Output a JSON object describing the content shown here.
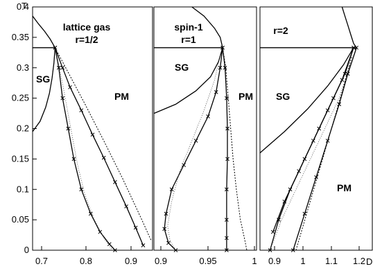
{
  "chart_data": {
    "type": "line",
    "ylabel": "T",
    "xlabel": "D",
    "ylim": [
      0,
      0.4
    ],
    "yticks": [
      "0",
      "0.05",
      "0.1",
      "0.15",
      "0.2",
      "0.25",
      "0.3",
      "0.35",
      "0.4"
    ],
    "grid": false,
    "panels": [
      {
        "title_lines": [
          "lattice gas",
          "r=1/2"
        ],
        "region_labels": [
          "SG",
          "PM"
        ],
        "xlim": [
          0.68,
          1.0
        ],
        "xticks": [
          "0.7",
          "0.8",
          "0.9"
        ],
        "series": [
          {
            "style": "solid",
            "x": [
              0.68,
              0.696,
              0.712,
              0.727,
              0.74
            ],
            "y": [
              0.385,
              0.372,
              0.36,
              0.347,
              0.333
            ]
          },
          {
            "style": "solid",
            "x": [
              0.68,
              0.7,
              0.715,
              0.725,
              0.732,
              0.737,
              0.74
            ],
            "y": [
              0.195,
              0.212,
              0.235,
              0.258,
              0.283,
              0.308,
              0.333
            ]
          },
          {
            "style": "solid",
            "x": [
              0.68,
              0.74
            ],
            "y": [
              0.333,
              0.333
            ]
          },
          {
            "style": "solid-x",
            "x": [
              0.74,
              0.76,
              0.78,
              0.81,
              0.84,
              0.87,
              0.9,
              0.93,
              0.955,
              0.975
            ],
            "y": [
              0.333,
              0.3,
              0.268,
              0.23,
              0.19,
              0.152,
              0.112,
              0.072,
              0.037,
              0.008
            ]
          },
          {
            "style": "dashed",
            "x": [
              0.74,
              0.77,
              0.82,
              0.87,
              0.92,
              0.97,
              0.997
            ],
            "y": [
              0.333,
              0.298,
              0.24,
              0.18,
              0.118,
              0.052,
              0.015
            ]
          },
          {
            "style": "solid-x",
            "x": [
              0.74,
              0.75,
              0.76,
              0.775,
              0.79,
              0.81,
              0.835,
              0.86,
              0.885,
              0.9
            ],
            "y": [
              0.333,
              0.3,
              0.25,
              0.2,
              0.15,
              0.1,
              0.06,
              0.03,
              0.01,
              0.0
            ]
          },
          {
            "style": "dotted",
            "x": [
              0.745,
              0.758,
              0.77,
              0.785,
              0.8,
              0.82,
              0.845,
              0.87,
              0.893
            ],
            "y": [
              0.32,
              0.28,
              0.24,
              0.19,
              0.14,
              0.09,
              0.05,
              0.02,
              0.0
            ]
          }
        ]
      },
      {
        "title_lines": [
          "spin-1",
          "r=1"
        ],
        "region_labels": [
          "SG",
          "PM"
        ],
        "xlim": [
          0.878,
          1.005
        ],
        "xticks": [
          "0.9",
          "0.95",
          "1"
        ],
        "series": [
          {
            "style": "solid",
            "x": [
              0.925,
              0.94,
              0.953,
              0.96,
              0.963
            ],
            "y": [
              0.4,
              0.385,
              0.365,
              0.35,
              0.333
            ]
          },
          {
            "style": "solid",
            "x": [
              0.878,
              0.905,
              0.93,
              0.948,
              0.958,
              0.963
            ],
            "y": [
              0.225,
              0.24,
              0.262,
              0.285,
              0.31,
              0.333
            ]
          },
          {
            "style": "solid",
            "x": [
              0.878,
              0.963
            ],
            "y": [
              0.333,
              0.333
            ]
          },
          {
            "style": "solid-x",
            "x": [
              0.963,
              0.966,
              0.968,
              0.969,
              0.969,
              0.968,
              0.968,
              0.968,
              0.968
            ],
            "y": [
              0.333,
              0.3,
              0.25,
              0.2,
              0.15,
              0.1,
              0.05,
              0.02,
              0.0
            ]
          },
          {
            "style": "solid-x",
            "x": [
              0.963,
              0.96,
              0.955,
              0.945,
              0.93,
              0.915,
              0.9,
              0.893,
              0.891,
              0.896,
              0.905
            ],
            "y": [
              0.333,
              0.3,
              0.26,
              0.22,
              0.18,
              0.14,
              0.1,
              0.06,
              0.035,
              0.012,
              0.0
            ]
          },
          {
            "style": "dashed",
            "x": [
              0.963,
              0.967,
              0.97,
              0.973,
              0.976,
              0.98,
              0.985,
              0.99,
              0.993
            ],
            "y": [
              0.333,
              0.3,
              0.25,
              0.2,
              0.15,
              0.1,
              0.05,
              0.02,
              0.0
            ]
          },
          {
            "style": "dotted",
            "x": [
              0.96,
              0.953,
              0.94,
              0.925,
              0.91,
              0.9,
              0.895,
              0.898,
              0.905
            ],
            "y": [
              0.32,
              0.28,
              0.23,
              0.18,
              0.13,
              0.08,
              0.04,
              0.015,
              0.0
            ]
          }
        ]
      },
      {
        "title_lines": [
          "r=2"
        ],
        "region_labels": [
          "SG",
          "PM"
        ],
        "xlim": [
          0.865,
          1.255
        ],
        "xticks": [
          "0.9",
          "1",
          "1.1",
          "1.2"
        ],
        "series": [
          {
            "style": "solid",
            "x": [
              1.15,
              1.16,
              1.17,
              1.18,
              1.19,
              1.2
            ],
            "y": [
              0.4,
              0.385,
              0.37,
              0.355,
              0.34,
              0.333
            ]
          },
          {
            "style": "solid",
            "x": [
              0.865,
              0.95,
              1.03,
              1.1,
              1.155,
              1.19
            ],
            "y": [
              0.16,
              0.195,
              0.232,
              0.27,
              0.305,
              0.333
            ]
          },
          {
            "style": "solid",
            "x": [
              0.865,
              1.2
            ],
            "y": [
              0.333,
              0.333
            ]
          },
          {
            "style": "solid-x",
            "x": [
              0.98,
              1.02,
              1.06,
              1.1,
              1.14,
              1.17,
              1.2
            ],
            "y": [
              0.0,
              0.06,
              0.12,
              0.18,
              0.24,
              0.29,
              0.333
            ]
          },
          {
            "style": "solid-x",
            "x": [
              0.9,
              0.93,
              0.97,
              1.02,
              1.07,
              1.12,
              1.16,
              1.19
            ],
            "y": [
              0.0,
              0.05,
              0.1,
              0.15,
              0.2,
              0.25,
              0.29,
              0.333
            ]
          },
          {
            "style": "solid-x",
            "x": [
              0.91,
              0.95,
              1.0,
              1.05,
              1.1,
              1.15,
              1.19
            ],
            "y": [
              0.03,
              0.08,
              0.13,
              0.18,
              0.23,
              0.28,
              0.333
            ]
          },
          {
            "style": "dashed",
            "x": [
              0.99,
              1.03,
              1.07,
              1.11,
              1.15,
              1.185
            ],
            "y": [
              0.0,
              0.065,
              0.13,
              0.195,
              0.26,
              0.32
            ]
          },
          {
            "style": "dotted",
            "x": [
              0.9,
              0.94,
              0.99,
              1.04,
              1.09,
              1.14,
              1.18
            ],
            "y": [
              0.0,
              0.05,
              0.1,
              0.15,
              0.2,
              0.25,
              0.31
            ]
          }
        ]
      }
    ]
  }
}
